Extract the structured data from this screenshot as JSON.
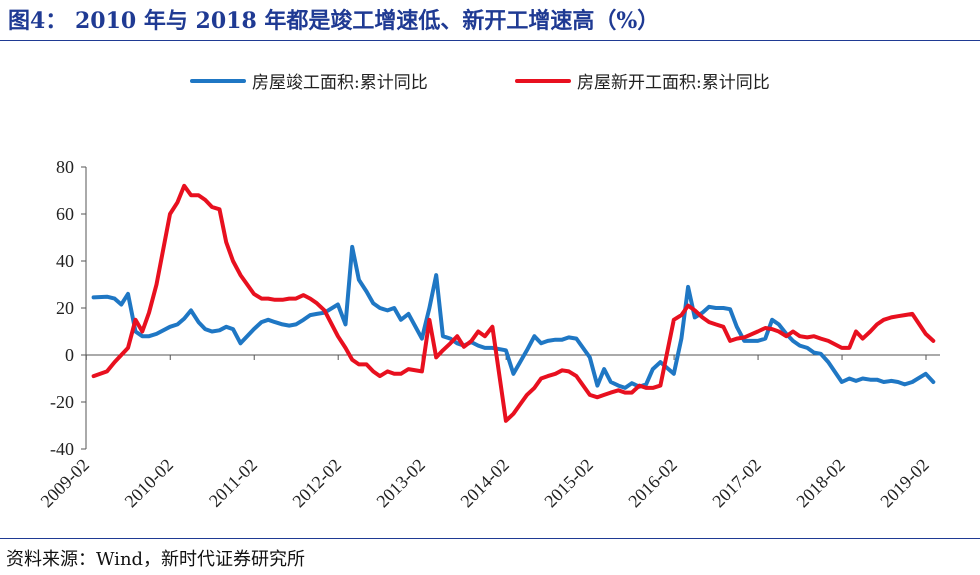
{
  "title": "图4： 2010 年与 2018 年都是竣工增速低、新开工增速高（%）",
  "source": "资料来源：Wind，新时代证券研究所",
  "chart_data": {
    "type": "line",
    "title": "2010 年与 2018 年都是竣工增速低、新开工增速高（%）",
    "xlabel": "",
    "ylabel": "",
    "ylim": [
      -40,
      80
    ],
    "yticks": [
      80,
      60,
      40,
      20,
      0,
      -20,
      -40
    ],
    "x_tick_labels": [
      "2009-02",
      "2010-02",
      "2011-02",
      "2012-02",
      "2013-02",
      "2014-02",
      "2015-02",
      "2016-02",
      "2017-02",
      "2018-02",
      "2019-02"
    ],
    "x_start": "2009-02",
    "x_end": "2019-02",
    "legend_position": "top",
    "colors": {
      "completion": "#1f77c4",
      "starts": "#e8101f",
      "axis": "#555555",
      "title": "#1f3a93"
    },
    "series": [
      {
        "name": "房屋竣工面积:累计同比",
        "color": "#1f77c4",
        "x": [
          2009.17,
          2009.33,
          2009.42,
          2009.5,
          2009.58,
          2009.67,
          2009.75,
          2009.83,
          2009.92,
          2010.08,
          2010.17,
          2010.25,
          2010.33,
          2010.42,
          2010.5,
          2010.58,
          2010.67,
          2010.75,
          2010.83,
          2010.92,
          2011.08,
          2011.17,
          2011.25,
          2011.33,
          2011.42,
          2011.5,
          2011.58,
          2011.67,
          2011.75,
          2011.83,
          2011.92,
          2012.08,
          2012.17,
          2012.25,
          2012.33,
          2012.42,
          2012.5,
          2012.58,
          2012.67,
          2012.75,
          2012.83,
          2012.92,
          2013.08,
          2013.17,
          2013.25,
          2013.33,
          2013.42,
          2013.5,
          2013.58,
          2013.67,
          2013.75,
          2013.83,
          2013.92,
          2014.08,
          2014.17,
          2014.25,
          2014.33,
          2014.42,
          2014.5,
          2014.58,
          2014.67,
          2014.75,
          2014.83,
          2014.92,
          2015.08,
          2015.17,
          2015.25,
          2015.33,
          2015.42,
          2015.5,
          2015.58,
          2015.67,
          2015.75,
          2015.83,
          2015.92,
          2016.08,
          2016.17,
          2016.25,
          2016.33,
          2016.42,
          2016.5,
          2016.58,
          2016.67,
          2016.75,
          2016.83,
          2016.92,
          2017.08,
          2017.17,
          2017.25,
          2017.33,
          2017.42,
          2017.5,
          2017.58,
          2017.67,
          2017.75,
          2017.83,
          2017.92,
          2018.08,
          2018.17,
          2018.25,
          2018.33,
          2018.42,
          2018.5,
          2018.58,
          2018.67,
          2018.75,
          2018.83,
          2018.92,
          2019.08,
          2019.17
        ],
        "values": [
          24.5,
          24.8,
          24,
          21.5,
          26,
          10,
          8,
          8,
          9,
          12,
          13,
          15.5,
          19,
          14,
          11,
          10,
          10.5,
          12,
          11,
          5,
          11,
          14,
          15,
          14,
          13,
          12.5,
          13,
          15,
          17,
          17.5,
          18,
          21.5,
          13,
          46,
          32,
          27,
          22,
          20,
          19,
          20,
          15,
          17.5,
          7,
          20,
          34,
          8,
          7,
          5,
          4,
          5.5,
          4,
          3,
          3,
          2,
          -8,
          -3,
          2,
          8,
          5,
          6,
          6.5,
          6.5,
          7.5,
          7,
          -1,
          -13,
          -6,
          -11.5,
          -13,
          -14,
          -12,
          -13.5,
          -12.5,
          -6,
          -3,
          -8,
          7,
          29,
          16,
          18,
          20.5,
          20,
          20,
          19.5,
          12,
          6,
          6,
          7,
          15,
          13,
          9,
          6,
          4,
          3,
          1,
          0.5,
          -3,
          -11.5,
          -10,
          -11,
          -10,
          -10.5,
          -10.5,
          -11.5,
          -11,
          -11.5,
          -12.5,
          -11.5,
          -8,
          -11.5
        ]
      },
      {
        "name": "房屋新开工面积:累计同比",
        "color": "#e8101f",
        "x": [
          2009.17,
          2009.33,
          2009.42,
          2009.5,
          2009.58,
          2009.67,
          2009.75,
          2009.83,
          2009.92,
          2010.08,
          2010.17,
          2010.25,
          2010.33,
          2010.42,
          2010.5,
          2010.58,
          2010.67,
          2010.75,
          2010.83,
          2010.92,
          2011.08,
          2011.17,
          2011.25,
          2011.33,
          2011.42,
          2011.5,
          2011.58,
          2011.67,
          2011.75,
          2011.83,
          2011.92,
          2012.08,
          2012.17,
          2012.25,
          2012.33,
          2012.42,
          2012.5,
          2012.58,
          2012.67,
          2012.75,
          2012.83,
          2012.92,
          2013.08,
          2013.17,
          2013.25,
          2013.33,
          2013.42,
          2013.5,
          2013.58,
          2013.67,
          2013.75,
          2013.83,
          2013.92,
          2014.08,
          2014.17,
          2014.25,
          2014.33,
          2014.42,
          2014.5,
          2014.58,
          2014.67,
          2014.75,
          2014.83,
          2014.92,
          2015.08,
          2015.17,
          2015.25,
          2015.33,
          2015.42,
          2015.5,
          2015.58,
          2015.67,
          2015.75,
          2015.83,
          2015.92,
          2016.08,
          2016.17,
          2016.25,
          2016.33,
          2016.42,
          2016.5,
          2016.58,
          2016.67,
          2016.75,
          2016.83,
          2016.92,
          2017.08,
          2017.17,
          2017.25,
          2017.33,
          2017.42,
          2017.5,
          2017.58,
          2017.67,
          2017.75,
          2017.83,
          2017.92,
          2018.08,
          2018.17,
          2018.25,
          2018.33,
          2018.42,
          2018.5,
          2018.58,
          2018.67,
          2018.75,
          2018.83,
          2018.92,
          2019.08,
          2019.17
        ],
        "values": [
          -9,
          -7,
          -3,
          0,
          3,
          15,
          10,
          18,
          30,
          60,
          65,
          72,
          68,
          68,
          66,
          63,
          62,
          48,
          40,
          34,
          26,
          24,
          24,
          23.5,
          23.5,
          24,
          24,
          25.5,
          24,
          22,
          19,
          8,
          3,
          -2,
          -4,
          -4,
          -7,
          -9,
          -7,
          -8,
          -8,
          -6,
          -7,
          15,
          -1,
          2,
          5,
          8,
          3.5,
          6,
          10,
          8,
          12,
          -28,
          -25,
          -21,
          -17,
          -14,
          -10,
          -9,
          -8,
          -6.5,
          -7,
          -9,
          -17,
          -18,
          -17,
          -16,
          -15,
          -16,
          -16,
          -13,
          -14,
          -14,
          -13,
          15,
          17,
          21,
          19,
          16,
          14,
          13,
          12,
          6,
          7,
          7.5,
          10,
          11.5,
          11,
          10,
          8,
          10,
          8,
          7.5,
          8,
          7,
          6,
          3,
          3,
          10,
          7,
          10,
          13,
          15,
          16,
          16.5,
          17,
          17.5,
          9,
          6
        ]
      }
    ]
  }
}
